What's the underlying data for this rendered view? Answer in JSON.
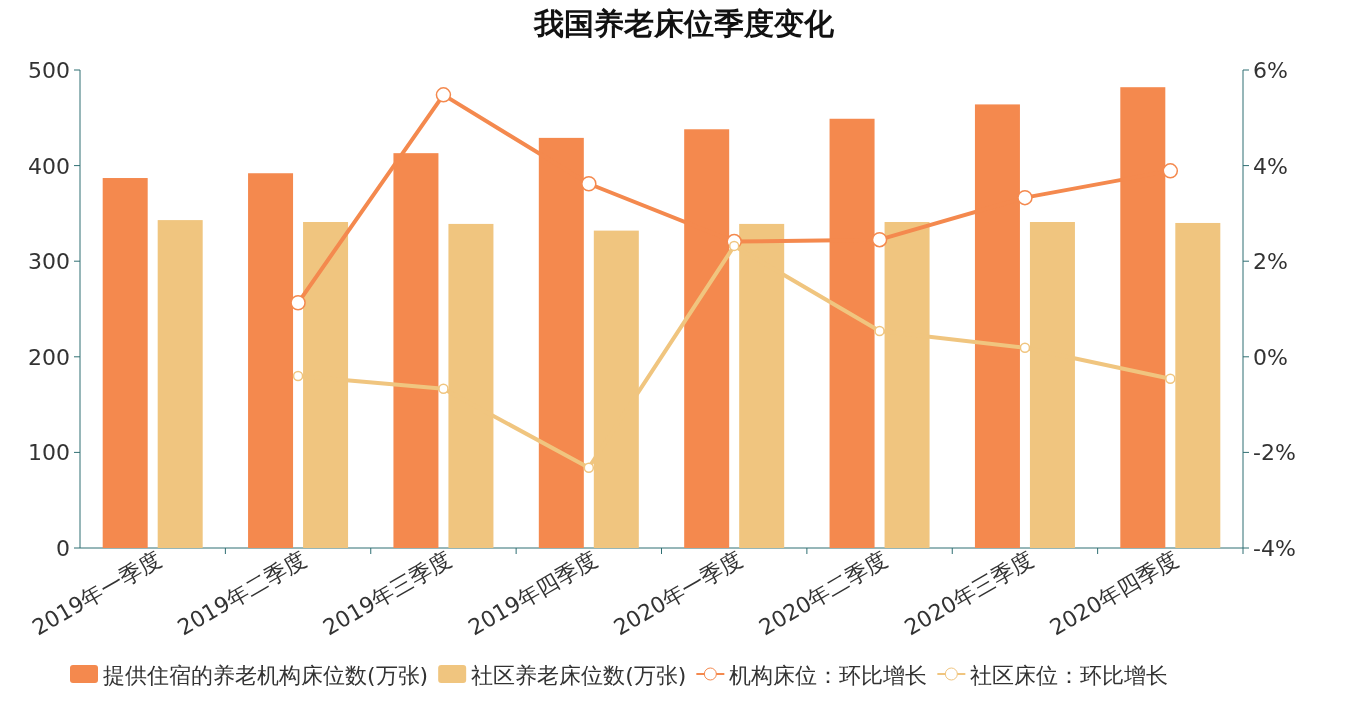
{
  "chart_data": {
    "type": "bar",
    "title": "我国养老床位季度变化",
    "categories": [
      "2019年一季度",
      "2019年二季度",
      "2019年三季度",
      "2019年四季度",
      "2020年一季度",
      "2020年二季度",
      "2020年三季度",
      "2020年四季度"
    ],
    "series": [
      {
        "name": "提供住宿的养老机构床位数(万张)",
        "color": "#f4894e",
        "values": [
          387,
          392,
          413,
          429,
          438,
          449,
          464,
          482
        ]
      },
      {
        "name": "社区养老床位数(万张)",
        "color": "#f0c57f",
        "values": [
          343,
          341,
          339,
          332,
          339,
          341,
          341,
          340
        ]
      },
      {
        "name": "机构床位：环比增长",
        "type": "line",
        "axis": "y2",
        "color": "#f4894e",
        "marker": "circle",
        "values": [
          null,
          1.13,
          5.48,
          3.62,
          2.41,
          2.45,
          3.33,
          3.89
        ]
      },
      {
        "name": "社区床位：环比增长",
        "type": "line",
        "axis": "y2",
        "color": "#f0c57f",
        "marker": "circle",
        "values": [
          null,
          -0.4,
          -0.67,
          -2.32,
          2.32,
          0.54,
          0.19,
          -0.46
        ]
      }
    ],
    "ylim": [
      0,
      500
    ],
    "yticks": [
      0,
      100,
      200,
      300,
      400,
      500
    ],
    "y2lim": [
      -4,
      6
    ],
    "y2ticks": [
      {
        "value": -4,
        "label": "-4%"
      },
      {
        "value": -2,
        "label": "-2%"
      },
      {
        "value": 0,
        "label": "0%"
      },
      {
        "value": 2,
        "label": "2%"
      },
      {
        "value": 4,
        "label": "4%"
      },
      {
        "value": 6,
        "label": "6%"
      }
    ],
    "grid": false,
    "legend": "bottom"
  }
}
